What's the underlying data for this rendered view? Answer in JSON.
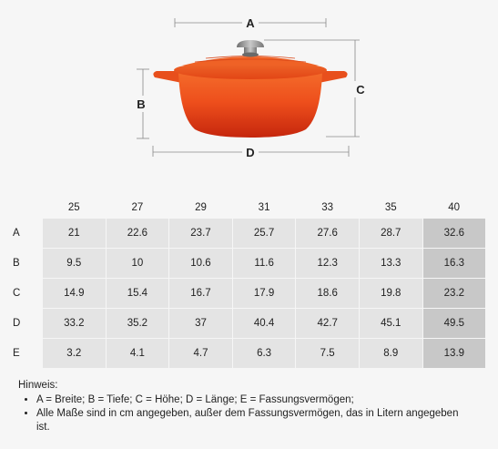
{
  "figure": {
    "labels": {
      "a": "A",
      "b": "B",
      "c": "C",
      "d": "D"
    },
    "colors": {
      "pot_top": "#f15a24",
      "pot_mid": "#e8491b",
      "pot_bottom": "#c92a0f",
      "knob": "#9a9a9a",
      "line": "#8a8a8a"
    }
  },
  "table": {
    "columns": [
      "25",
      "27",
      "29",
      "31",
      "33",
      "35",
      "40"
    ],
    "rows": [
      {
        "label": "A",
        "values": [
          "21",
          "22.6",
          "23.7",
          "25.7",
          "27.6",
          "28.7",
          "32.6"
        ]
      },
      {
        "label": "B",
        "values": [
          "9.5",
          "10",
          "10.6",
          "11.6",
          "12.3",
          "13.3",
          "16.3"
        ]
      },
      {
        "label": "C",
        "values": [
          "14.9",
          "15.4",
          "16.7",
          "17.9",
          "18.6",
          "19.8",
          "23.2"
        ]
      },
      {
        "label": "D",
        "values": [
          "33.2",
          "35.2",
          "37",
          "40.4",
          "42.7",
          "45.1",
          "49.5"
        ]
      },
      {
        "label": "E",
        "values": [
          "3.2",
          "4.1",
          "4.7",
          "6.3",
          "7.5",
          "8.9",
          "13.9"
        ]
      }
    ],
    "colors": {
      "cell": "#e4e4e4",
      "highlight": "#c8c8c8"
    }
  },
  "notes": {
    "title": "Hinweis:",
    "items": [
      "A = Breite; B = Tiefe; C = Höhe; D = Länge; E = Fassungsvermögen;",
      "Alle Maße sind in cm angegeben, außer dem Fassungsvermögen, das in Litern angegeben ist."
    ]
  }
}
